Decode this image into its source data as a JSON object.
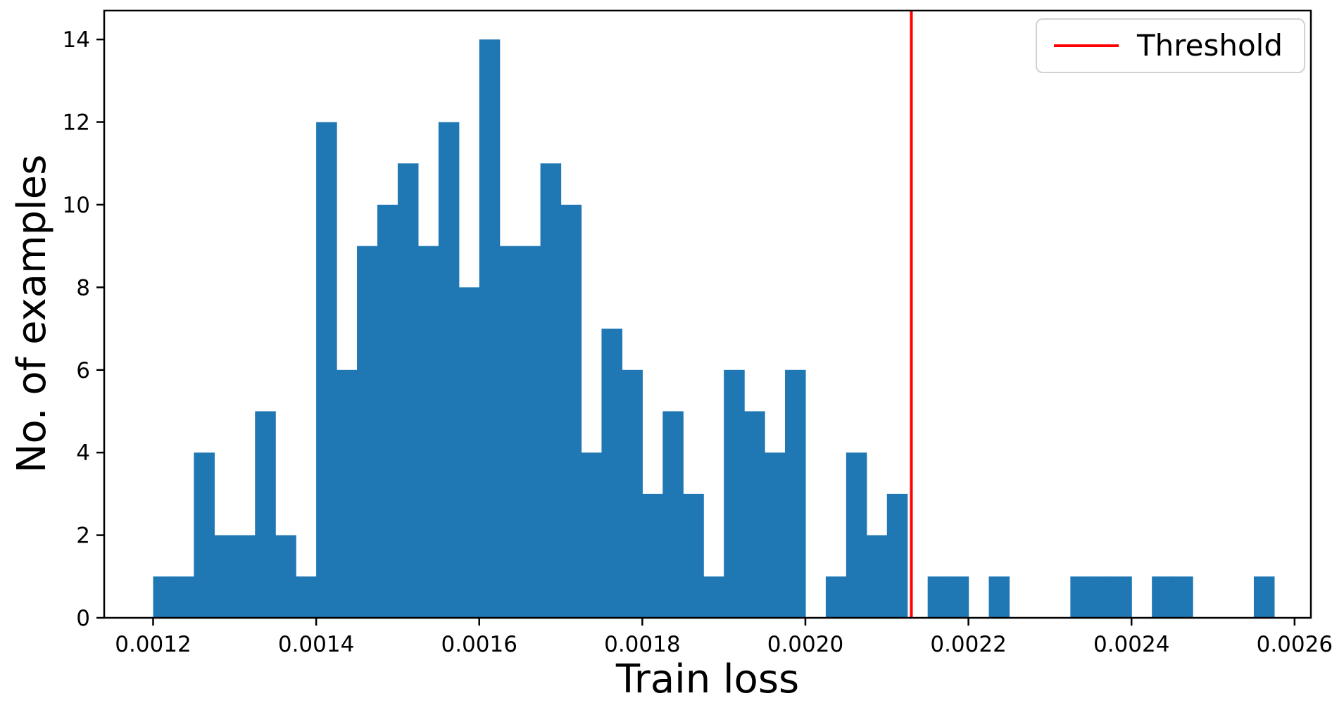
{
  "chart_data": {
    "type": "bar",
    "subtype": "histogram",
    "title": "",
    "xlabel": "Train loss",
    "ylabel": "No. of examples",
    "bin_start": 0.0012,
    "bin_width": 2.5e-05,
    "counts": [
      1,
      1,
      4,
      2,
      2,
      5,
      2,
      1,
      12,
      6,
      9,
      10,
      11,
      9,
      12,
      8,
      14,
      9,
      9,
      11,
      10,
      4,
      7,
      6,
      3,
      5,
      3,
      1,
      6,
      5,
      4,
      6,
      0,
      1,
      4,
      2,
      3,
      0,
      1,
      1,
      0,
      1,
      0,
      0,
      0,
      1,
      1,
      1,
      0,
      1,
      1,
      0,
      0,
      0,
      1,
      0
    ],
    "threshold": 0.00213,
    "x_ticks": [
      0.0012,
      0.0014,
      0.0016,
      0.0018,
      0.002,
      0.0022,
      0.0024,
      0.0026
    ],
    "x_tick_labels": [
      "0.0012",
      "0.0014",
      "0.0016",
      "0.0018",
      "0.0020",
      "0.0022",
      "0.0024",
      "0.0026"
    ],
    "y_ticks": [
      0,
      2,
      4,
      6,
      8,
      10,
      12,
      14
    ],
    "y_tick_labels": [
      "0",
      "2",
      "4",
      "6",
      "8",
      "10",
      "12",
      "14"
    ],
    "xlim": [
      0.00114,
      0.00262
    ],
    "ylim": [
      0,
      14.7
    ],
    "grid": false,
    "bar_color": "#1f77b4",
    "threshold_color": "#ff0000",
    "axis_color": "#000000",
    "legend": {
      "position": "upper right",
      "entries": [
        {
          "label": "Threshold",
          "color": "#ff0000",
          "style": "line"
        }
      ]
    }
  }
}
